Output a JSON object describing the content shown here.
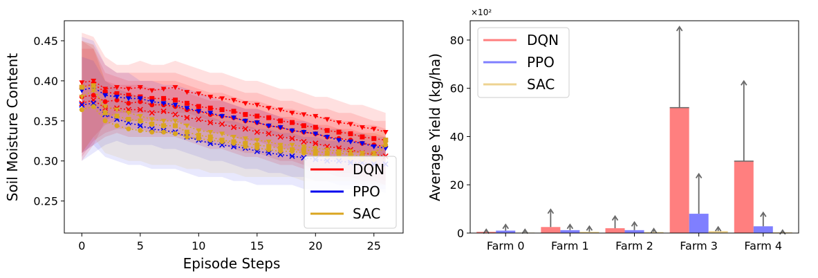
{
  "colors": {
    "DQN": "#ff0000",
    "PPO": "#0000ee",
    "SAC": "#daa520",
    "DQN_bar": "#ff7f7f",
    "PPO_bar": "#7f7fff",
    "SAC_bar": "#eed391"
  },
  "chart_data": [
    {
      "type": "line",
      "xlabel": "Episode Steps",
      "ylabel": "Soil Moisture Content",
      "xlim": [
        -1.5,
        27.5
      ],
      "ylim": [
        0.21,
        0.475
      ],
      "xticks": [
        0,
        5,
        10,
        15,
        20,
        25
      ],
      "xtick_labels": [
        "0",
        "5",
        "10",
        "15",
        "20",
        "25"
      ],
      "yticks": [
        0.25,
        0.3,
        0.35,
        0.4,
        0.45
      ],
      "ytick_labels": [
        "0.25",
        "0.30",
        "0.35",
        "0.40",
        "0.45"
      ],
      "legend_position": "lower-right",
      "x": [
        0,
        1,
        2,
        3,
        4,
        5,
        6,
        7,
        8,
        9,
        10,
        11,
        12,
        13,
        14,
        15,
        16,
        17,
        18,
        19,
        20,
        21,
        22,
        23,
        24,
        25,
        26
      ],
      "series": [
        {
          "name": "DQN",
          "color_key": "DQN",
          "runs": [
            {
              "marker": "v",
              "values": [
                0.398,
                0.4,
                0.39,
                0.392,
                0.39,
                0.392,
                0.388,
                0.39,
                0.392,
                0.386,
                0.384,
                0.38,
                0.378,
                0.376,
                0.372,
                0.37,
                0.366,
                0.364,
                0.36,
                0.358,
                0.356,
                0.352,
                0.348,
                0.346,
                0.342,
                0.34,
                0.336
              ]
            },
            {
              "marker": "s",
              "values": [
                0.392,
                0.396,
                0.386,
                0.384,
                0.382,
                0.38,
                0.378,
                0.378,
                0.376,
                0.372,
                0.368,
                0.366,
                0.364,
                0.362,
                0.358,
                0.356,
                0.354,
                0.35,
                0.348,
                0.344,
                0.342,
                0.338,
                0.336,
                0.334,
                0.33,
                0.328,
                0.326
              ]
            },
            {
              "marker": "o",
              "values": [
                0.38,
                0.382,
                0.374,
                0.376,
                0.372,
                0.374,
                0.37,
                0.37,
                0.368,
                0.364,
                0.362,
                0.358,
                0.356,
                0.354,
                0.35,
                0.348,
                0.344,
                0.342,
                0.338,
                0.336,
                0.334,
                0.33,
                0.328,
                0.326,
                0.322,
                0.32,
                0.318
              ]
            },
            {
              "marker": "x",
              "values": [
                0.372,
                0.376,
                0.366,
                0.366,
                0.364,
                0.364,
                0.36,
                0.362,
                0.358,
                0.354,
                0.352,
                0.348,
                0.346,
                0.342,
                0.34,
                0.336,
                0.334,
                0.33,
                0.328,
                0.324,
                0.322,
                0.318,
                0.316,
                0.314,
                0.31,
                0.308,
                0.306
              ]
            }
          ]
        },
        {
          "name": "PPO",
          "color_key": "PPO",
          "runs": [
            {
              "marker": "v",
              "values": [
                0.388,
                0.392,
                0.382,
                0.38,
                0.378,
                0.378,
                0.374,
                0.372,
                0.37,
                0.366,
                0.362,
                0.36,
                0.356,
                0.354,
                0.35,
                0.348,
                0.344,
                0.342,
                0.338,
                0.336,
                0.334,
                0.33,
                0.326,
                0.324,
                0.322,
                0.318,
                0.316
              ]
            },
            {
              "marker": "x",
              "values": [
                0.37,
                0.372,
                0.358,
                0.352,
                0.348,
                0.344,
                0.34,
                0.338,
                0.336,
                0.33,
                0.326,
                0.322,
                0.32,
                0.318,
                0.316,
                0.312,
                0.31,
                0.308,
                0.306,
                0.304,
                0.302,
                0.3,
                0.3,
                0.298,
                0.298,
                0.296,
                0.296
              ]
            }
          ]
        },
        {
          "name": "SAC",
          "color_key": "SAC",
          "runs": [
            {
              "marker": "s",
              "values": [
                0.392,
                0.394,
                0.36,
                0.356,
                0.352,
                0.35,
                0.346,
                0.344,
                0.344,
                0.336,
                0.332,
                0.33,
                0.326,
                0.324,
                0.322,
                0.32,
                0.318,
                0.316,
                0.314,
                0.314,
                0.312,
                0.31,
                0.31,
                0.308,
                0.306,
                0.306,
                0.326
              ]
            },
            {
              "marker": "o",
              "values": [
                0.364,
                0.368,
                0.35,
                0.344,
                0.34,
                0.338,
                0.336,
                0.336,
                0.334,
                0.33,
                0.328,
                0.326,
                0.324,
                0.322,
                0.318,
                0.316,
                0.314,
                0.312,
                0.312,
                0.31,
                0.308,
                0.306,
                0.306,
                0.304,
                0.302,
                0.302,
                0.32
              ]
            },
            {
              "marker": "v",
              "values": [
                0.38,
                0.388,
                0.368,
                0.364,
                0.36,
                0.356,
                0.352,
                0.35,
                0.35,
                0.344,
                0.338,
                0.336,
                0.334,
                0.33,
                0.328,
                0.326,
                0.324,
                0.32,
                0.32,
                0.318,
                0.316,
                0.314,
                0.312,
                0.312,
                0.31,
                0.31,
                0.322
              ]
            }
          ]
        }
      ],
      "bands": [
        {
          "color_key": "DQN",
          "opacity": 0.12,
          "lo": [
            0.3,
            0.32,
            0.35,
            0.36,
            0.36,
            0.36,
            0.36,
            0.36,
            0.36,
            0.36,
            0.355,
            0.35,
            0.35,
            0.345,
            0.34,
            0.34,
            0.335,
            0.33,
            0.33,
            0.325,
            0.32,
            0.32,
            0.315,
            0.31,
            0.31,
            0.305,
            0.3
          ],
          "hi": [
            0.46,
            0.455,
            0.43,
            0.42,
            0.42,
            0.425,
            0.42,
            0.42,
            0.425,
            0.42,
            0.415,
            0.41,
            0.41,
            0.405,
            0.4,
            0.4,
            0.395,
            0.39,
            0.39,
            0.385,
            0.38,
            0.38,
            0.375,
            0.37,
            0.37,
            0.365,
            0.36
          ]
        },
        {
          "color_key": "DQN",
          "opacity": 0.12,
          "lo": [
            0.31,
            0.33,
            0.345,
            0.35,
            0.35,
            0.35,
            0.35,
            0.35,
            0.35,
            0.345,
            0.34,
            0.335,
            0.335,
            0.33,
            0.325,
            0.325,
            0.32,
            0.315,
            0.315,
            0.31,
            0.305,
            0.305,
            0.3,
            0.3,
            0.295,
            0.29,
            0.29
          ],
          "hi": [
            0.45,
            0.445,
            0.42,
            0.41,
            0.41,
            0.41,
            0.41,
            0.41,
            0.41,
            0.405,
            0.4,
            0.395,
            0.395,
            0.39,
            0.385,
            0.385,
            0.38,
            0.375,
            0.375,
            0.37,
            0.365,
            0.365,
            0.36,
            0.36,
            0.355,
            0.35,
            0.35
          ]
        },
        {
          "color_key": "DQN",
          "opacity": 0.12,
          "lo": [
            0.305,
            0.325,
            0.335,
            0.34,
            0.34,
            0.34,
            0.335,
            0.335,
            0.335,
            0.33,
            0.325,
            0.32,
            0.32,
            0.315,
            0.31,
            0.31,
            0.305,
            0.3,
            0.3,
            0.295,
            0.29,
            0.29,
            0.285,
            0.285,
            0.28,
            0.28,
            0.275
          ],
          "hi": [
            0.45,
            0.44,
            0.41,
            0.405,
            0.4,
            0.4,
            0.4,
            0.4,
            0.4,
            0.395,
            0.39,
            0.385,
            0.385,
            0.38,
            0.375,
            0.375,
            0.37,
            0.365,
            0.365,
            0.36,
            0.355,
            0.355,
            0.35,
            0.35,
            0.345,
            0.345,
            0.34
          ]
        },
        {
          "color_key": "DQN",
          "opacity": 0.12,
          "lo": [
            0.31,
            0.32,
            0.33,
            0.335,
            0.33,
            0.33,
            0.33,
            0.33,
            0.33,
            0.325,
            0.32,
            0.315,
            0.315,
            0.31,
            0.305,
            0.305,
            0.3,
            0.295,
            0.295,
            0.29,
            0.285,
            0.285,
            0.28,
            0.28,
            0.275,
            0.275,
            0.27
          ],
          "hi": [
            0.44,
            0.44,
            0.4,
            0.395,
            0.395,
            0.395,
            0.39,
            0.39,
            0.39,
            0.385,
            0.38,
            0.375,
            0.375,
            0.37,
            0.365,
            0.365,
            0.36,
            0.355,
            0.355,
            0.35,
            0.345,
            0.345,
            0.34,
            0.34,
            0.335,
            0.335,
            0.33
          ]
        },
        {
          "color_key": "PPO",
          "opacity": 0.09,
          "lo": [
            0.3,
            0.31,
            0.32,
            0.325,
            0.32,
            0.32,
            0.32,
            0.315,
            0.315,
            0.31,
            0.305,
            0.3,
            0.3,
            0.295,
            0.29,
            0.29,
            0.285,
            0.285,
            0.28,
            0.28,
            0.275,
            0.275,
            0.27,
            0.27,
            0.27,
            0.265,
            0.265
          ],
          "hi": [
            0.455,
            0.45,
            0.42,
            0.41,
            0.41,
            0.4,
            0.4,
            0.395,
            0.395,
            0.39,
            0.385,
            0.38,
            0.375,
            0.37,
            0.365,
            0.365,
            0.36,
            0.355,
            0.35,
            0.35,
            0.345,
            0.34,
            0.34,
            0.335,
            0.335,
            0.33,
            0.33
          ]
        },
        {
          "color_key": "PPO",
          "opacity": 0.09,
          "lo": [
            0.31,
            0.32,
            0.305,
            0.3,
            0.295,
            0.295,
            0.29,
            0.29,
            0.29,
            0.285,
            0.28,
            0.28,
            0.28,
            0.275,
            0.275,
            0.27,
            0.27,
            0.27,
            0.27,
            0.265,
            0.265,
            0.265,
            0.265,
            0.265,
            0.265,
            0.265,
            0.26
          ],
          "hi": [
            0.43,
            0.425,
            0.4,
            0.39,
            0.385,
            0.38,
            0.375,
            0.375,
            0.37,
            0.365,
            0.36,
            0.355,
            0.35,
            0.35,
            0.345,
            0.34,
            0.34,
            0.335,
            0.335,
            0.33,
            0.33,
            0.325,
            0.325,
            0.325,
            0.325,
            0.32,
            0.32
          ]
        },
        {
          "color_key": "SAC",
          "opacity": 0.1,
          "lo": [
            0.31,
            0.33,
            0.31,
            0.305,
            0.3,
            0.3,
            0.295,
            0.295,
            0.295,
            0.29,
            0.29,
            0.285,
            0.285,
            0.285,
            0.28,
            0.28,
            0.28,
            0.28,
            0.28,
            0.275,
            0.275,
            0.275,
            0.275,
            0.275,
            0.27,
            0.27,
            0.27
          ],
          "hi": [
            0.45,
            0.445,
            0.4,
            0.39,
            0.385,
            0.38,
            0.38,
            0.375,
            0.375,
            0.37,
            0.365,
            0.36,
            0.36,
            0.355,
            0.355,
            0.35,
            0.35,
            0.345,
            0.345,
            0.345,
            0.34,
            0.34,
            0.34,
            0.335,
            0.335,
            0.335,
            0.34
          ]
        }
      ]
    },
    {
      "type": "bar",
      "ylabel": "Average Yield (kg/ha)",
      "scale_label": "×10²",
      "ylim": [
        0,
        88
      ],
      "yticks": [
        0,
        20,
        40,
        60,
        80
      ],
      "ytick_labels": [
        "0",
        "20",
        "40",
        "60",
        "80"
      ],
      "categories": [
        "Farm 0",
        "Farm 1",
        "Farm 2",
        "Farm 3",
        "Farm 4"
      ],
      "legend_position": "top-left",
      "series": [
        {
          "name": "DQN",
          "color_key": "DQN_bar",
          "values": [
            0.5,
            2.5,
            2.0,
            52.0,
            29.8
          ],
          "err_upper": [
            1.5,
            9.8,
            7.0,
            85.5,
            63.0
          ]
        },
        {
          "name": "PPO",
          "color_key": "PPO_bar",
          "values": [
            1.0,
            1.2,
            1.2,
            8.0,
            2.8
          ],
          "err_upper": [
            3.5,
            3.5,
            4.5,
            24.5,
            8.5
          ]
        },
        {
          "name": "SAC",
          "color_key": "SAC_bar",
          "values": [
            0.2,
            0.5,
            0.4,
            0.8,
            0.3
          ],
          "err_upper": [
            1.5,
            2.8,
            1.8,
            2.5,
            1.2
          ]
        }
      ]
    }
  ]
}
